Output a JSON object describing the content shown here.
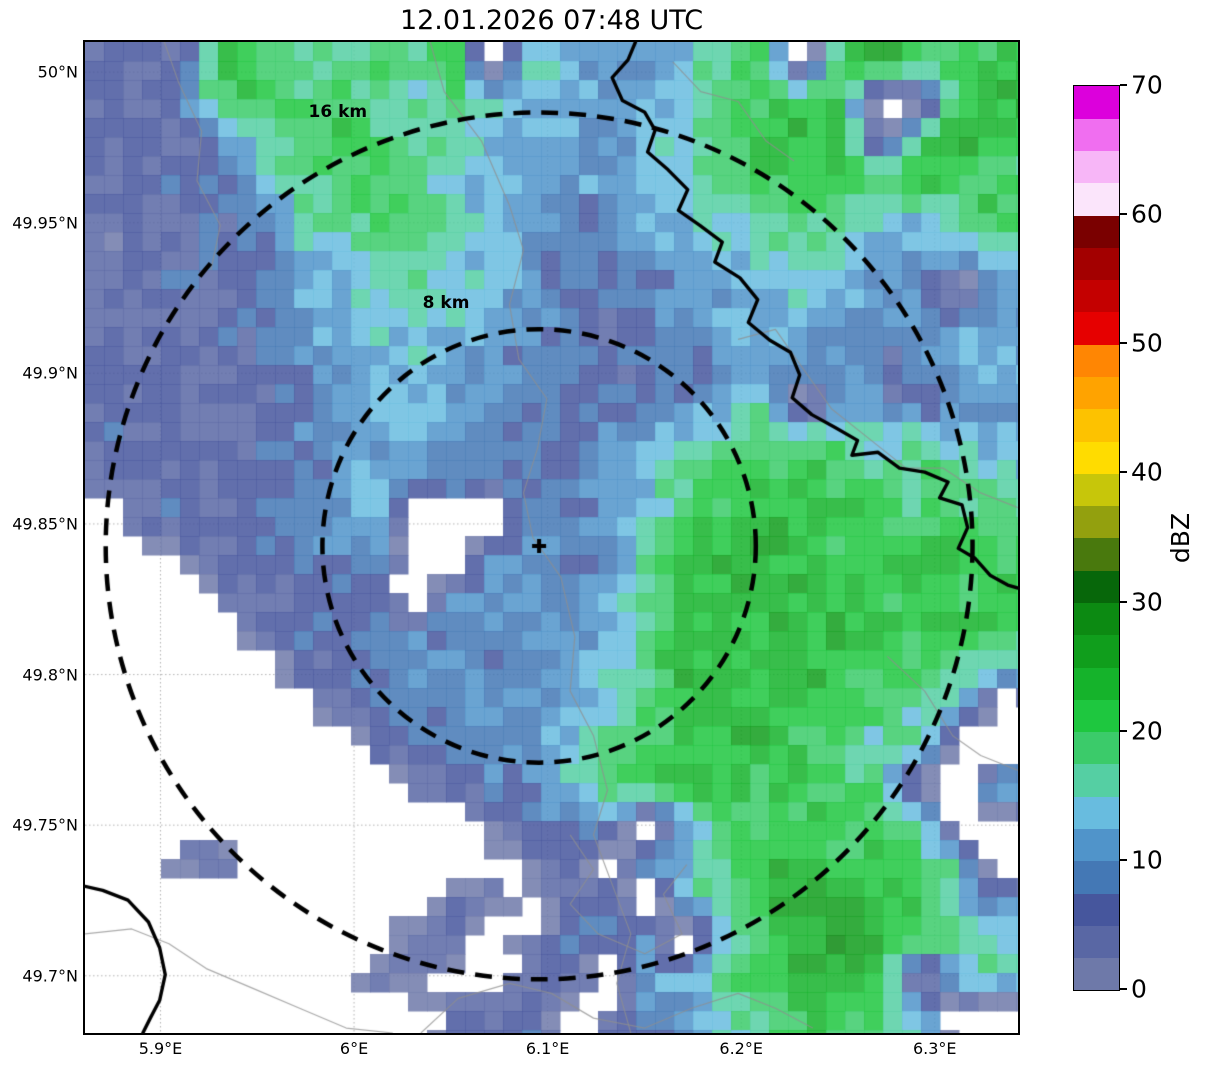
{
  "title": "12.01.2026 07:48 UTC",
  "map": {
    "extent": {
      "lon_min": 5.861,
      "lon_max": 6.343,
      "lat_min": 49.681,
      "lat_max": 50.01
    },
    "x_axis": {
      "ticks": [
        {
          "value": 5.9,
          "label": "5.9°E"
        },
        {
          "value": 6.0,
          "label": "6°E"
        },
        {
          "value": 6.1,
          "label": "6.1°E"
        },
        {
          "value": 6.2,
          "label": "6.2°E"
        },
        {
          "value": 6.3,
          "label": "6.3°E"
        }
      ]
    },
    "y_axis": {
      "ticks": [
        {
          "value": 50.0,
          "label": "50°N"
        },
        {
          "value": 49.95,
          "label": "49.95°N"
        },
        {
          "value": 49.9,
          "label": "49.9°N"
        },
        {
          "value": 49.85,
          "label": "49.85°N"
        },
        {
          "value": 49.8,
          "label": "49.8°N"
        },
        {
          "value": 49.75,
          "label": "49.75°N"
        },
        {
          "value": 49.7,
          "label": "49.7°N"
        }
      ]
    },
    "range_rings": [
      {
        "radius_km": 8,
        "label": "8 km",
        "label_pos": [
          0.387,
          0.263
        ]
      },
      {
        "radius_km": 16,
        "label": "16 km",
        "label_pos": [
          0.271,
          0.071
        ]
      }
    ],
    "radar_site": {
      "lon": 6.0956,
      "lat": 49.8427,
      "marker": "+"
    },
    "map_layers": {
      "borders": [
        [
          [
            0.59,
            0.0
          ],
          [
            0.582,
            0.018
          ],
          [
            0.565,
            0.036
          ],
          [
            0.576,
            0.059
          ],
          [
            0.6,
            0.071
          ],
          [
            0.611,
            0.089
          ],
          [
            0.603,
            0.111
          ],
          [
            0.625,
            0.129
          ],
          [
            0.646,
            0.149
          ],
          [
            0.636,
            0.17
          ],
          [
            0.659,
            0.185
          ],
          [
            0.683,
            0.202
          ],
          [
            0.675,
            0.222
          ],
          [
            0.702,
            0.238
          ],
          [
            0.721,
            0.26
          ],
          [
            0.711,
            0.283
          ],
          [
            0.734,
            0.301
          ],
          [
            0.756,
            0.313
          ],
          [
            0.766,
            0.336
          ],
          [
            0.758,
            0.359
          ],
          [
            0.779,
            0.376
          ],
          [
            0.804,
            0.389
          ],
          [
            0.828,
            0.402
          ],
          [
            0.822,
            0.417
          ],
          [
            0.85,
            0.414
          ],
          [
            0.873,
            0.43
          ],
          [
            0.9,
            0.434
          ],
          [
            0.925,
            0.444
          ],
          [
            0.916,
            0.46
          ],
          [
            0.94,
            0.467
          ],
          [
            0.946,
            0.49
          ],
          [
            0.936,
            0.511
          ],
          [
            0.954,
            0.521
          ],
          [
            0.97,
            0.538
          ],
          [
            0.989,
            0.548
          ],
          [
            1.0,
            0.551
          ]
        ],
        [
          [
            0.0,
            0.852
          ],
          [
            0.019,
            0.856
          ],
          [
            0.046,
            0.866
          ],
          [
            0.068,
            0.888
          ],
          [
            0.08,
            0.914
          ],
          [
            0.086,
            0.941
          ],
          [
            0.08,
            0.967
          ],
          [
            0.07,
            0.985
          ],
          [
            0.062,
            1.0
          ]
        ]
      ],
      "rivers": [
        [
          [
            0.37,
            0.0
          ],
          [
            0.385,
            0.05
          ],
          [
            0.425,
            0.1
          ],
          [
            0.455,
            0.165
          ],
          [
            0.47,
            0.21
          ],
          [
            0.455,
            0.265
          ],
          [
            0.465,
            0.32
          ],
          [
            0.495,
            0.36
          ],
          [
            0.485,
            0.41
          ],
          [
            0.47,
            0.455
          ],
          [
            0.48,
            0.5
          ],
          [
            0.51,
            0.54
          ],
          [
            0.525,
            0.6
          ],
          [
            0.52,
            0.655
          ],
          [
            0.545,
            0.7
          ],
          [
            0.56,
            0.755
          ],
          [
            0.545,
            0.8
          ],
          [
            0.565,
            0.85
          ],
          [
            0.585,
            0.9
          ],
          [
            0.57,
            0.95
          ],
          [
            0.585,
            1.0
          ]
        ],
        [
          [
            0.085,
            0.0
          ],
          [
            0.1,
            0.04
          ],
          [
            0.125,
            0.09
          ],
          [
            0.12,
            0.14
          ],
          [
            0.145,
            0.185
          ],
          [
            0.135,
            0.23
          ]
        ],
        [
          [
            0.7,
            0.3
          ],
          [
            0.74,
            0.29
          ],
          [
            0.77,
            0.33
          ],
          [
            0.8,
            0.37
          ],
          [
            0.84,
            0.4
          ],
          [
            0.88,
            0.43
          ],
          [
            0.92,
            0.43
          ],
          [
            0.96,
            0.455
          ],
          [
            1.0,
            0.47
          ]
        ],
        [
          [
            0.0,
            0.9
          ],
          [
            0.05,
            0.895
          ],
          [
            0.09,
            0.91
          ],
          [
            0.13,
            0.935
          ],
          [
            0.18,
            0.955
          ],
          [
            0.23,
            0.975
          ],
          [
            0.28,
            0.995
          ],
          [
            0.33,
            1.0
          ]
        ],
        [
          [
            0.36,
            1.0
          ],
          [
            0.4,
            0.965
          ],
          [
            0.455,
            0.95
          ],
          [
            0.5,
            0.96
          ],
          [
            0.545,
            0.985
          ],
          [
            0.6,
            0.995
          ],
          [
            0.65,
            0.975
          ],
          [
            0.7,
            0.96
          ],
          [
            0.74,
            0.975
          ],
          [
            0.78,
            0.995
          ]
        ],
        [
          [
            0.52,
            0.8
          ],
          [
            0.545,
            0.835
          ],
          [
            0.52,
            0.87
          ],
          [
            0.55,
            0.9
          ],
          [
            0.6,
            0.92
          ],
          [
            0.64,
            0.9
          ],
          [
            0.62,
            0.86
          ],
          [
            0.645,
            0.83
          ]
        ],
        [
          [
            0.86,
            0.62
          ],
          [
            0.9,
            0.655
          ],
          [
            0.93,
            0.7
          ],
          [
            0.96,
            0.72
          ],
          [
            1.0,
            0.735
          ]
        ],
        [
          [
            0.63,
            0.02
          ],
          [
            0.66,
            0.05
          ],
          [
            0.7,
            0.06
          ],
          [
            0.73,
            0.1
          ],
          [
            0.76,
            0.12
          ]
        ]
      ]
    }
  },
  "colorbar": {
    "label": "dBZ",
    "min": 0,
    "max": 70,
    "step": 2.5,
    "tick_values": [
      0,
      10,
      20,
      30,
      40,
      50,
      60,
      70
    ],
    "colors": [
      "#6E79A9",
      "#5967A4",
      "#46569D",
      "#4478B5",
      "#5094CA",
      "#68BCDF",
      "#55CFA3",
      "#3BCB6A",
      "#1EC73F",
      "#15B32B",
      "#109E1C",
      "#0C8A12",
      "#07670A",
      "#49790D",
      "#93A00E",
      "#C7C60A",
      "#FFDC00",
      "#FDC200",
      "#FFA300",
      "#FF8603",
      "#E60000",
      "#C40000",
      "#A30000",
      "#7A0000",
      "#FBE5FB",
      "#F7B6F7",
      "#F06EF0",
      "#DC00DC"
    ]
  },
  "chart_data": {
    "type": "heatmap",
    "title": "12.01.2026 07:48 UTC",
    "units": "dBZ",
    "value_range": [
      0,
      70
    ],
    "lon_range": [
      5.861,
      6.343
    ],
    "lat_range": [
      49.681,
      50.01
    ],
    "grid_cols": 24,
    "grid_rows": 26,
    "no_data": -1,
    "values": [
      [
        5,
        4,
        6,
        22,
        20,
        18,
        16,
        20,
        18,
        20,
        -1,
        15,
        13,
        10,
        10,
        13,
        18,
        20,
        -1,
        22,
        25,
        22,
        20,
        22
      ],
      [
        6,
        5,
        8,
        20,
        23,
        18,
        20,
        18,
        16,
        18,
        15,
        13,
        12,
        10,
        12,
        15,
        20,
        22,
        20,
        22,
        -1,
        -1,
        22,
        25
      ],
      [
        5,
        6,
        5,
        10,
        15,
        20,
        22,
        20,
        18,
        15,
        13,
        12,
        10,
        10,
        13,
        15,
        18,
        22,
        25,
        22,
        -1,
        22,
        25,
        22
      ],
      [
        4,
        5,
        6,
        8,
        13,
        18,
        20,
        22,
        18,
        15,
        12,
        10,
        10,
        12,
        13,
        15,
        20,
        22,
        22,
        20,
        22,
        25,
        20,
        18
      ],
      [
        5,
        4,
        5,
        6,
        10,
        15,
        18,
        20,
        20,
        16,
        13,
        10,
        8,
        10,
        12,
        13,
        15,
        18,
        20,
        18,
        15,
        13,
        20,
        22
      ],
      [
        4,
        6,
        5,
        8,
        8,
        13,
        15,
        18,
        18,
        15,
        13,
        10,
        8,
        8,
        10,
        13,
        13,
        15,
        18,
        15,
        13,
        10,
        13,
        15
      ],
      [
        5,
        5,
        6,
        6,
        8,
        10,
        13,
        15,
        16,
        15,
        13,
        10,
        8,
        8,
        8,
        10,
        13,
        13,
        15,
        13,
        10,
        10,
        -1,
        13
      ],
      [
        4,
        5,
        5,
        6,
        8,
        10,
        13,
        15,
        15,
        13,
        12,
        10,
        8,
        6,
        8,
        10,
        10,
        13,
        13,
        10,
        8,
        10,
        13,
        10
      ],
      [
        5,
        4,
        6,
        5,
        6,
        8,
        10,
        13,
        13,
        13,
        10,
        8,
        8,
        6,
        6,
        8,
        10,
        10,
        10,
        8,
        5,
        8,
        10,
        13
      ],
      [
        5,
        6,
        5,
        6,
        5,
        8,
        10,
        13,
        13,
        10,
        10,
        8,
        6,
        8,
        8,
        10,
        13,
        15,
        -1,
        13,
        8,
        5,
        8,
        10
      ],
      [
        6,
        5,
        6,
        5,
        6,
        8,
        10,
        10,
        13,
        10,
        8,
        8,
        8,
        10,
        13,
        15,
        18,
        20,
        20,
        18,
        15,
        18,
        15,
        13
      ],
      [
        5,
        6,
        5,
        6,
        8,
        8,
        10,
        13,
        10,
        10,
        8,
        6,
        8,
        10,
        13,
        18,
        20,
        22,
        22,
        20,
        18,
        20,
        18,
        15
      ],
      [
        -1,
        5,
        6,
        5,
        6,
        8,
        10,
        13,
        -1,
        -1,
        -1,
        8,
        8,
        10,
        15,
        20,
        22,
        25,
        22,
        22,
        20,
        18,
        20,
        18
      ],
      [
        -1,
        -1,
        5,
        6,
        5,
        8,
        8,
        10,
        -1,
        -1,
        10,
        10,
        8,
        10,
        18,
        22,
        25,
        25,
        22,
        20,
        22,
        25,
        22,
        20
      ],
      [
        -1,
        -1,
        -1,
        5,
        6,
        6,
        8,
        8,
        -1,
        10,
        8,
        10,
        10,
        13,
        18,
        22,
        25,
        22,
        25,
        22,
        20,
        22,
        20,
        22
      ],
      [
        -1,
        -1,
        -1,
        -1,
        5,
        6,
        8,
        8,
        10,
        8,
        10,
        8,
        10,
        13,
        20,
        22,
        22,
        25,
        22,
        25,
        22,
        20,
        25,
        20
      ],
      [
        -1,
        -1,
        -1,
        -1,
        -1,
        5,
        6,
        8,
        8,
        10,
        8,
        10,
        13,
        15,
        20,
        25,
        22,
        22,
        25,
        22,
        20,
        22,
        18,
        15
      ],
      [
        -1,
        -1,
        -1,
        -1,
        -1,
        -1,
        5,
        6,
        8,
        8,
        10,
        10,
        13,
        15,
        18,
        22,
        25,
        22,
        22,
        20,
        18,
        15,
        13,
        -1
      ],
      [
        -1,
        -1,
        -1,
        -1,
        -1,
        -1,
        -1,
        5,
        6,
        8,
        8,
        10,
        13,
        18,
        20,
        22,
        22,
        25,
        20,
        18,
        15,
        18,
        -1,
        -1
      ],
      [
        -1,
        -1,
        -1,
        -1,
        -1,
        -1,
        -1,
        -1,
        5,
        6,
        8,
        10,
        15,
        18,
        22,
        25,
        22,
        20,
        22,
        20,
        18,
        -1,
        -1,
        15
      ],
      [
        -1,
        -1,
        -1,
        -1,
        -1,
        -1,
        -1,
        -1,
        -1,
        -1,
        5,
        6,
        8,
        10,
        -1,
        13,
        18,
        20,
        22,
        22,
        20,
        18,
        -1,
        -1
      ],
      [
        -1,
        -1,
        5,
        6,
        -1,
        -1,
        -1,
        -1,
        -1,
        -1,
        -1,
        5,
        6,
        -1,
        10,
        13,
        20,
        22,
        25,
        20,
        22,
        18,
        15,
        -1
      ],
      [
        -1,
        -1,
        -1,
        -1,
        -1,
        -1,
        -1,
        -1,
        -1,
        5,
        6,
        -1,
        5,
        8,
        -1,
        15,
        18,
        22,
        28,
        25,
        22,
        20,
        15,
        10
      ],
      [
        -1,
        -1,
        -1,
        -1,
        -1,
        -1,
        -1,
        -1,
        5,
        6,
        -1,
        5,
        6,
        8,
        10,
        -1,
        15,
        20,
        25,
        28,
        25,
        22,
        18,
        13
      ],
      [
        -1,
        -1,
        -1,
        -1,
        -1,
        -1,
        -1,
        5,
        6,
        -1,
        -1,
        5,
        8,
        -1,
        10,
        13,
        18,
        22,
        25,
        25,
        22,
        -1,
        15,
        18
      ],
      [
        -1,
        -1,
        -1,
        -1,
        -1,
        -1,
        -1,
        -1,
        -1,
        5,
        6,
        8,
        -1,
        5,
        8,
        10,
        15,
        18,
        22,
        20,
        18,
        15,
        -1,
        -1
      ]
    ]
  }
}
